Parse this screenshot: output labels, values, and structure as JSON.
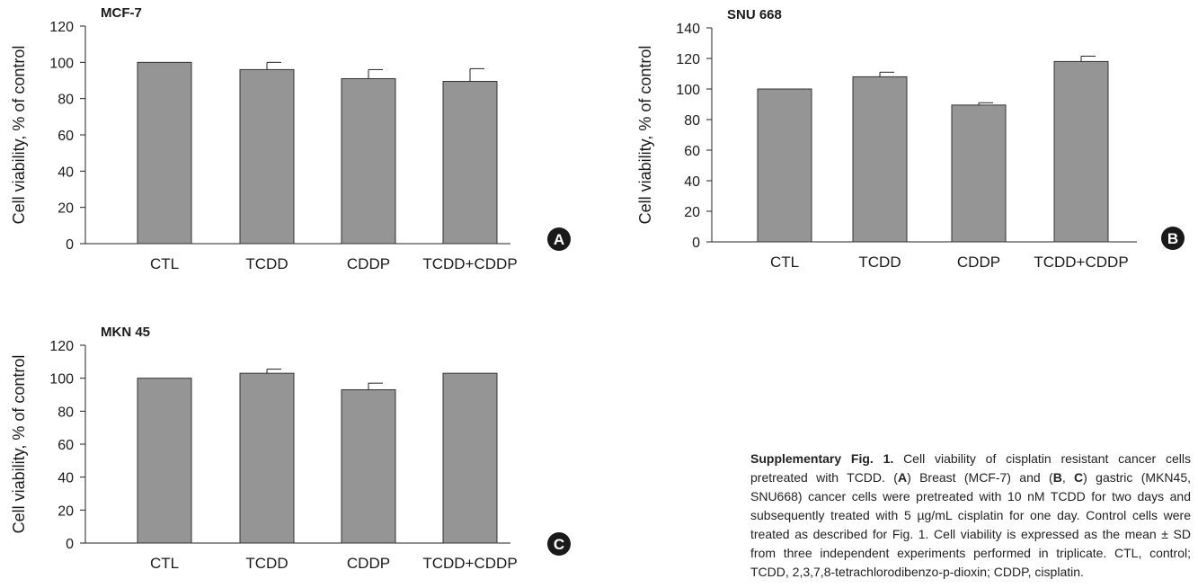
{
  "colors": {
    "bar": "#959595",
    "bar_stroke": "#333333",
    "axis": "#222222",
    "text": "#1a1a1a",
    "badge": "#1a1a1a",
    "badge_text": "#ffffff"
  },
  "chart_data": [
    {
      "type": "bar",
      "panel_label": "A",
      "title": "MCF-7",
      "ylabel": "Cell viability, % of control",
      "xlabel": "",
      "categories": [
        "CTL",
        "TCDD",
        "CDDP",
        "TCDD+CDDP"
      ],
      "values": [
        100,
        96,
        91,
        89.5
      ],
      "errors": [
        0,
        4,
        5,
        7
      ],
      "ylim": [
        0,
        120
      ],
      "yticks": [
        0,
        20,
        40,
        60,
        80,
        100,
        120
      ],
      "grid": false,
      "legend": "none"
    },
    {
      "type": "bar",
      "panel_label": "B",
      "title": "SNU 668",
      "ylabel": "Cell viability, % of control",
      "xlabel": "",
      "categories": [
        "CTL",
        "TCDD",
        "CDDP",
        "TCDD+CDDP"
      ],
      "values": [
        100,
        108,
        89.5,
        118
      ],
      "errors": [
        0,
        3,
        1.5,
        3.5
      ],
      "ylim": [
        0,
        140
      ],
      "yticks": [
        0,
        20,
        40,
        60,
        80,
        100,
        120,
        140
      ],
      "grid": false,
      "legend": "none"
    },
    {
      "type": "bar",
      "panel_label": "C",
      "title": "MKN 45",
      "ylabel": "Cell viability, % of control",
      "xlabel": "",
      "categories": [
        "CTL",
        "TCDD",
        "CDDP",
        "TCDD+CDDP"
      ],
      "values": [
        100,
        103,
        93,
        103
      ],
      "errors": [
        0,
        2.5,
        4,
        0
      ],
      "ylim": [
        0,
        120
      ],
      "yticks": [
        0,
        20,
        40,
        60,
        80,
        100,
        120
      ],
      "grid": false,
      "legend": "none"
    }
  ],
  "caption": {
    "heading": "Supplementary Fig. 1.",
    "s1": " Cell viability of cisplatin resistant cancer cells pretreated with TCDD. (",
    "b1": "A",
    "s2": ") Breast (MCF-7) and (",
    "b2": "B",
    "s3": ", ",
    "b3": "C",
    "s4": ") gastric (MKN45, SNU668) cancer cells were pretreated with 10 nM TCDD for two days and subsequently treated with 5 µg/mL cisplatin for one day. Control cells were treated as described for Fig. 1. Cell viability is expressed as the mean ± SD from three independent experiments performed in triplicate. CTL, control; TCDD, 2,3,7,8-tetrachlorodibenzo-p-dioxin; CDDP, cisplatin."
  }
}
